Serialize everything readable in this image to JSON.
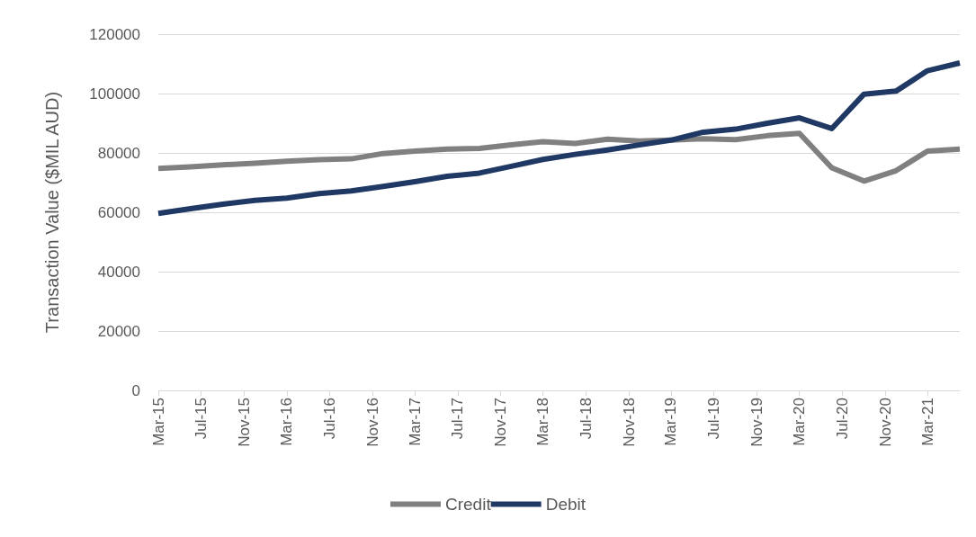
{
  "chart_data": {
    "type": "line",
    "ylabel": "Transaction Value ($MIL AUD)",
    "x": [
      "2015-03",
      "2015-06",
      "2015-09",
      "2015-12",
      "2016-03",
      "2016-06",
      "2016-09",
      "2016-12",
      "2017-03",
      "2017-06",
      "2017-09",
      "2017-12",
      "2018-03",
      "2018-06",
      "2018-09",
      "2018-12",
      "2019-03",
      "2019-06",
      "2019-09",
      "2019-12",
      "2020-03",
      "2020-06",
      "2020-09",
      "2020-12",
      "2021-03",
      "2021-06"
    ],
    "series": [
      {
        "name": "Credit",
        "color": "#808080",
        "values": [
          74800,
          75300,
          76000,
          76500,
          77200,
          77700,
          78000,
          79800,
          80600,
          81300,
          81500,
          82700,
          83800,
          83200,
          84600,
          84000,
          84300,
          84800,
          84500,
          85800,
          86600,
          75000,
          70500,
          74000,
          80600,
          81300
        ]
      },
      {
        "name": "Debit",
        "color": "#203864",
        "values": [
          59600,
          61200,
          62700,
          64000,
          64800,
          66300,
          67200,
          68700,
          70300,
          72100,
          73200,
          75500,
          77800,
          79500,
          81000,
          82700,
          84300,
          87000,
          88000,
          90000,
          91800,
          88200,
          99800,
          100800,
          107700,
          110300
        ]
      }
    ],
    "xlim": [
      "2015-03",
      "2021-06"
    ],
    "xticks": [
      {
        "value": "2015-03",
        "label": "Mar-15"
      },
      {
        "value": "2015-07",
        "label": "Jul-15"
      },
      {
        "value": "2015-11",
        "label": "Nov-15"
      },
      {
        "value": "2016-03",
        "label": "Mar-16"
      },
      {
        "value": "2016-07",
        "label": "Jul-16"
      },
      {
        "value": "2016-11",
        "label": "Nov-16"
      },
      {
        "value": "2017-03",
        "label": "Mar-17"
      },
      {
        "value": "2017-07",
        "label": "Jul-17"
      },
      {
        "value": "2017-11",
        "label": "Nov-17"
      },
      {
        "value": "2018-03",
        "label": "Mar-18"
      },
      {
        "value": "2018-07",
        "label": "Jul-18"
      },
      {
        "value": "2018-11",
        "label": "Nov-18"
      },
      {
        "value": "2019-03",
        "label": "Mar-19"
      },
      {
        "value": "2019-07",
        "label": "Jul-19"
      },
      {
        "value": "2019-11",
        "label": "Nov-19"
      },
      {
        "value": "2020-03",
        "label": "Mar-20"
      },
      {
        "value": "2020-07",
        "label": "Jul-20"
      },
      {
        "value": "2020-11",
        "label": "Nov-20"
      },
      {
        "value": "2021-03",
        "label": "Mar-21"
      }
    ],
    "ylim": [
      0,
      120000
    ],
    "yticks": [
      0,
      20000,
      40000,
      60000,
      80000,
      100000,
      120000
    ],
    "grid": "y",
    "legend": "bottom",
    "marker": "none",
    "line_style": "solid"
  }
}
